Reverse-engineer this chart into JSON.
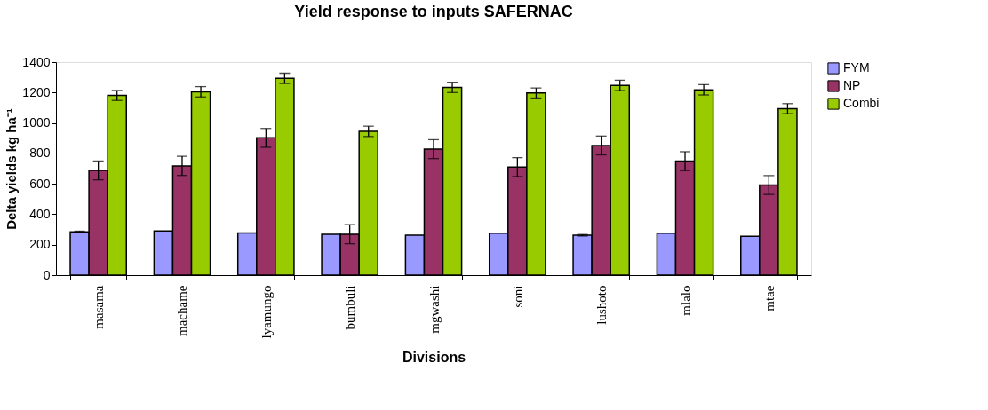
{
  "chart_data": {
    "type": "bar",
    "title": "Yield response to inputs SAFERNAC",
    "xlabel": "Divisions",
    "ylabel": "Delta yields kg ha⁻¹",
    "categories": [
      "masama",
      "machame",
      "lyamungo",
      "bumbuli",
      "mgwashi",
      "soni",
      "lushoto",
      "mlalo",
      "mtae"
    ],
    "series": [
      {
        "name": "FYM",
        "color": "#9999ff",
        "values": [
          284,
          290,
          277,
          269,
          262,
          275,
          262,
          275,
          255
        ],
        "errors": [
          5,
          null,
          null,
          null,
          null,
          null,
          5,
          null,
          null
        ]
      },
      {
        "name": "NP",
        "color": "#993366",
        "values": [
          688,
          718,
          902,
          269,
          828,
          710,
          852,
          749,
          592
        ],
        "errors": [
          62,
          63,
          62,
          63,
          62,
          62,
          62,
          62,
          62
        ]
      },
      {
        "name": "Combi",
        "color": "#99cc00",
        "values": [
          1181,
          1205,
          1293,
          945,
          1234,
          1197,
          1247,
          1218,
          1094
        ],
        "errors": [
          33,
          34,
          34,
          34,
          34,
          33,
          34,
          34,
          33
        ]
      }
    ],
    "ylim": [
      0,
      1400
    ],
    "yticks": [
      0,
      200,
      400,
      600,
      800,
      1000,
      1200,
      1400
    ],
    "grid": false,
    "legend": "right"
  }
}
